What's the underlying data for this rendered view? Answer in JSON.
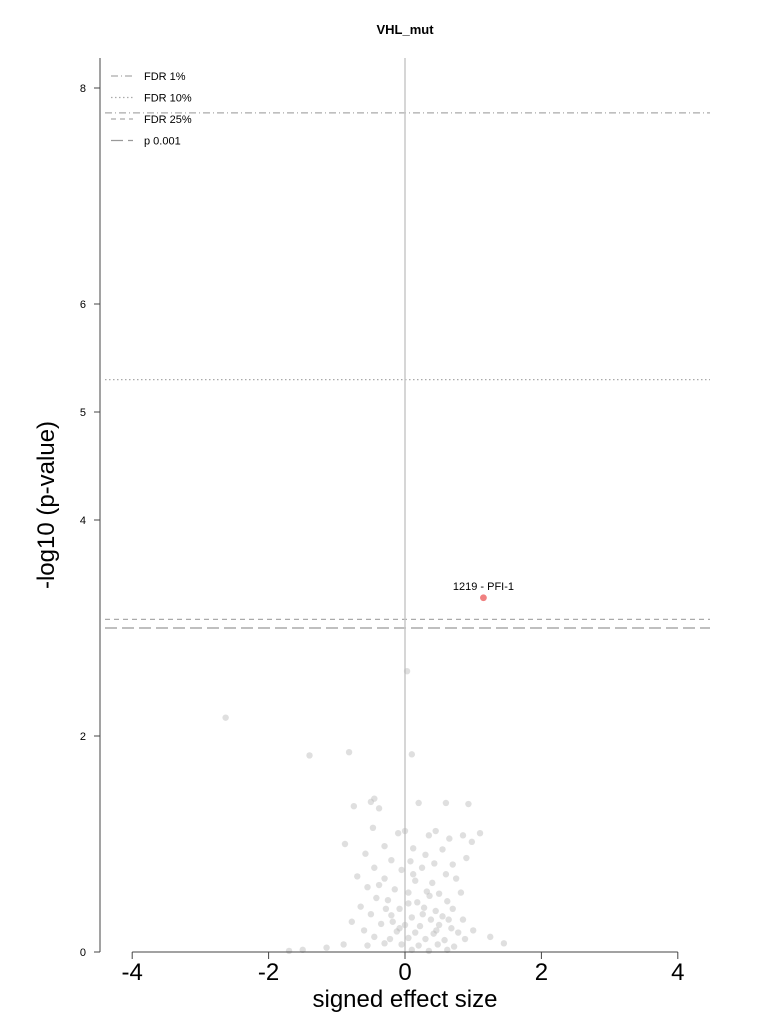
{
  "chart_data": {
    "type": "scatter",
    "title": "VHL_mut",
    "xlabel": "signed effect size",
    "ylabel": "-log10 (p-value)",
    "xlim": [
      -4.4,
      4.5
    ],
    "ylim": [
      0,
      8.3
    ],
    "xticks": [
      -4,
      -2,
      0,
      2,
      4
    ],
    "yticks": [
      0,
      2,
      4,
      5,
      6,
      8
    ],
    "grid": false,
    "legend_position": "top-left",
    "thresholds": [
      {
        "name": "FDR 1%",
        "y": 7.77,
        "style": "dash-dot",
        "color": "#aaaaaa"
      },
      {
        "name": "FDR 10%",
        "y": 5.3,
        "style": "dotted",
        "color": "#aaaaaa"
      },
      {
        "name": "FDR 25%",
        "y": 3.08,
        "style": "dashed",
        "color": "#aaaaaa"
      },
      {
        "name": "p 0.001",
        "y": 3.0,
        "style": "long-dash",
        "color": "#999999"
      }
    ],
    "highlight": {
      "label": "1219 - PFI-1",
      "x": 1.15,
      "y": 3.28,
      "color": "#f08080"
    },
    "point_color": "#b8b8b8",
    "points": [
      [
        -2.63,
        2.17
      ],
      [
        -1.4,
        1.82
      ],
      [
        -0.82,
        1.85
      ],
      [
        0.03,
        2.6
      ],
      [
        0.1,
        1.83
      ],
      [
        -0.75,
        1.35
      ],
      [
        -0.5,
        1.39
      ],
      [
        -0.45,
        1.42
      ],
      [
        -0.38,
        1.33
      ],
      [
        0.2,
        1.38
      ],
      [
        0.6,
        1.38
      ],
      [
        0.93,
        1.37
      ],
      [
        -0.88,
        1.0
      ],
      [
        -0.47,
        1.15
      ],
      [
        -0.1,
        1.1
      ],
      [
        0.0,
        1.12
      ],
      [
        0.35,
        1.08
      ],
      [
        0.45,
        1.12
      ],
      [
        0.85,
        1.08
      ],
      [
        1.1,
        1.1
      ],
      [
        0.65,
        1.05
      ],
      [
        0.98,
        1.02
      ],
      [
        -0.3,
        0.98
      ],
      [
        0.12,
        0.96
      ],
      [
        0.3,
        0.9
      ],
      [
        0.55,
        0.95
      ],
      [
        -0.58,
        0.91
      ],
      [
        -0.2,
        0.85
      ],
      [
        0.08,
        0.84
      ],
      [
        0.43,
        0.82
      ],
      [
        0.7,
        0.81
      ],
      [
        0.9,
        0.87
      ],
      [
        -0.45,
        0.78
      ],
      [
        -0.05,
        0.76
      ],
      [
        0.25,
        0.78
      ],
      [
        0.6,
        0.72
      ],
      [
        -0.7,
        0.7
      ],
      [
        -0.3,
        0.68
      ],
      [
        0.15,
        0.66
      ],
      [
        0.4,
        0.64
      ],
      [
        0.75,
        0.68
      ],
      [
        -0.55,
        0.6
      ],
      [
        -0.15,
        0.58
      ],
      [
        0.05,
        0.55
      ],
      [
        0.32,
        0.56
      ],
      [
        0.5,
        0.54
      ],
      [
        0.82,
        0.55
      ],
      [
        -0.42,
        0.5
      ],
      [
        -0.25,
        0.48
      ],
      [
        0.18,
        0.46
      ],
      [
        0.62,
        0.47
      ],
      [
        -0.65,
        0.42
      ],
      [
        -0.08,
        0.4
      ],
      [
        0.28,
        0.41
      ],
      [
        0.45,
        0.38
      ],
      [
        0.7,
        0.4
      ],
      [
        -0.5,
        0.35
      ],
      [
        -0.2,
        0.34
      ],
      [
        0.1,
        0.32
      ],
      [
        0.38,
        0.3
      ],
      [
        0.55,
        0.33
      ],
      [
        0.85,
        0.3
      ],
      [
        -0.78,
        0.28
      ],
      [
        -0.35,
        0.26
      ],
      [
        0.0,
        0.25
      ],
      [
        0.22,
        0.24
      ],
      [
        0.5,
        0.25
      ],
      [
        0.68,
        0.22
      ],
      [
        -0.6,
        0.2
      ],
      [
        -0.12,
        0.19
      ],
      [
        0.15,
        0.18
      ],
      [
        0.42,
        0.17
      ],
      [
        0.78,
        0.18
      ],
      [
        1.0,
        0.2
      ],
      [
        -0.45,
        0.14
      ],
      [
        -0.22,
        0.12
      ],
      [
        0.05,
        0.13
      ],
      [
        0.3,
        0.12
      ],
      [
        0.58,
        0.11
      ],
      [
        0.88,
        0.12
      ],
      [
        -0.3,
        0.08
      ],
      [
        -0.05,
        0.07
      ],
      [
        0.2,
        0.06
      ],
      [
        0.48,
        0.07
      ],
      [
        0.72,
        0.05
      ],
      [
        1.25,
        0.14
      ],
      [
        1.45,
        0.08
      ],
      [
        -0.55,
        0.06
      ],
      [
        -0.9,
        0.07
      ],
      [
        -1.15,
        0.04
      ],
      [
        -1.5,
        0.02
      ],
      [
        -1.7,
        0.01
      ],
      [
        0.1,
        0.02
      ],
      [
        0.35,
        0.01
      ],
      [
        0.62,
        0.02
      ],
      [
        -0.18,
        0.28
      ],
      [
        0.26,
        0.35
      ],
      [
        0.05,
        0.45
      ],
      [
        -0.38,
        0.62
      ],
      [
        0.12,
        0.72
      ],
      [
        0.36,
        0.52
      ],
      [
        -0.08,
        0.22
      ],
      [
        0.46,
        0.2
      ],
      [
        0.64,
        0.3
      ],
      [
        -0.28,
        0.4
      ]
    ]
  }
}
